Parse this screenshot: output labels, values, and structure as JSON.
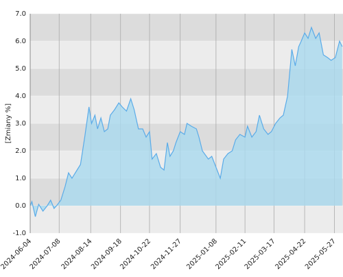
{
  "chart_data": {
    "type": "area",
    "y_label": "[Zmiany %]",
    "color": "#5aabe8",
    "fill": "#a9d9ef",
    "x": [
      "2024-06-04",
      "2024-06-06",
      "2024-06-10",
      "2024-06-14",
      "2024-06-19",
      "2024-06-24",
      "2024-06-28",
      "2024-07-02",
      "2024-07-05",
      "2024-07-10",
      "2024-07-15",
      "2024-07-19",
      "2024-07-23",
      "2024-07-29",
      "2024-08-02",
      "2024-08-07",
      "2024-08-12",
      "2024-08-15",
      "2024-08-19",
      "2024-08-22",
      "2024-08-26",
      "2024-08-30",
      "2024-09-03",
      "2024-09-06",
      "2024-09-11",
      "2024-09-16",
      "2024-09-20",
      "2024-09-25",
      "2024-09-30",
      "2024-10-04",
      "2024-10-09",
      "2024-10-14",
      "2024-10-18",
      "2024-10-22",
      "2024-10-25",
      "2024-10-30",
      "2024-11-04",
      "2024-11-08",
      "2024-11-12",
      "2024-11-15",
      "2024-11-19",
      "2024-11-22",
      "2024-11-27",
      "2024-12-02",
      "2024-12-05",
      "2024-12-10",
      "2024-12-16",
      "2024-12-19",
      "2024-12-23",
      "2024-12-30",
      "2025-01-03",
      "2025-01-08",
      "2025-01-13",
      "2025-01-17",
      "2025-01-22",
      "2025-01-27",
      "2025-01-31",
      "2025-02-05",
      "2025-02-11",
      "2025-02-14",
      "2025-02-19",
      "2025-02-24",
      "2025-02-28",
      "2025-03-05",
      "2025-03-10",
      "2025-03-14",
      "2025-03-19",
      "2025-03-24",
      "2025-03-28",
      "2025-04-02",
      "2025-04-07",
      "2025-04-11",
      "2025-04-15",
      "2025-04-18",
      "2025-04-22",
      "2025-04-26",
      "2025-04-30",
      "2025-05-05",
      "2025-05-09",
      "2025-05-14",
      "2025-05-19",
      "2025-05-23",
      "2025-05-28",
      "2025-06-02",
      "2025-06-05"
    ],
    "values": [
      0.0,
      0.15,
      -0.4,
      0.05,
      -0.2,
      0.0,
      0.2,
      -0.1,
      0.0,
      0.2,
      0.7,
      1.2,
      1.0,
      1.3,
      1.5,
      2.5,
      3.6,
      3.0,
      3.3,
      2.8,
      3.2,
      2.7,
      2.8,
      3.3,
      3.5,
      3.75,
      3.6,
      3.45,
      3.9,
      3.5,
      2.8,
      2.8,
      2.5,
      2.7,
      1.7,
      1.9,
      1.4,
      1.3,
      2.3,
      1.8,
      2.0,
      2.3,
      2.7,
      2.6,
      3.0,
      2.9,
      2.8,
      2.5,
      2.0,
      1.7,
      1.8,
      1.4,
      1.0,
      1.7,
      1.9,
      2.0,
      2.4,
      2.6,
      2.5,
      2.9,
      2.5,
      2.7,
      3.3,
      2.8,
      2.6,
      2.7,
      3.0,
      3.2,
      3.3,
      4.0,
      5.7,
      5.1,
      5.8,
      6.0,
      6.3,
      6.1,
      6.5,
      6.1,
      6.3,
      5.5,
      5.4,
      5.3,
      5.4,
      6.0,
      5.8
    ],
    "xlim": [
      "2024-06-04",
      "2025-06-06"
    ],
    "xticks": [
      "2024-06-04",
      "2024-07-08",
      "2024-08-14",
      "2024-09-18",
      "2024-10-22",
      "2024-11-27",
      "2025-01-08",
      "2025-02-11",
      "2025-03-17",
      "2025-04-22",
      "2025-05-27"
    ],
    "ylim": [
      -1,
      7
    ],
    "yticks": [
      {
        "value": -1,
        "label": "-1.0"
      },
      {
        "value": 0,
        "label": "0.0"
      },
      {
        "value": 1,
        "label": "1.0"
      },
      {
        "value": 2,
        "label": "2.0"
      },
      {
        "value": 3,
        "label": "3.0"
      },
      {
        "value": 4,
        "label": "4.0"
      },
      {
        "value": 5,
        "label": "5.0"
      },
      {
        "value": 6,
        "label": "6.0"
      },
      {
        "value": 7,
        "label": "7.0"
      }
    ],
    "grid": true
  }
}
